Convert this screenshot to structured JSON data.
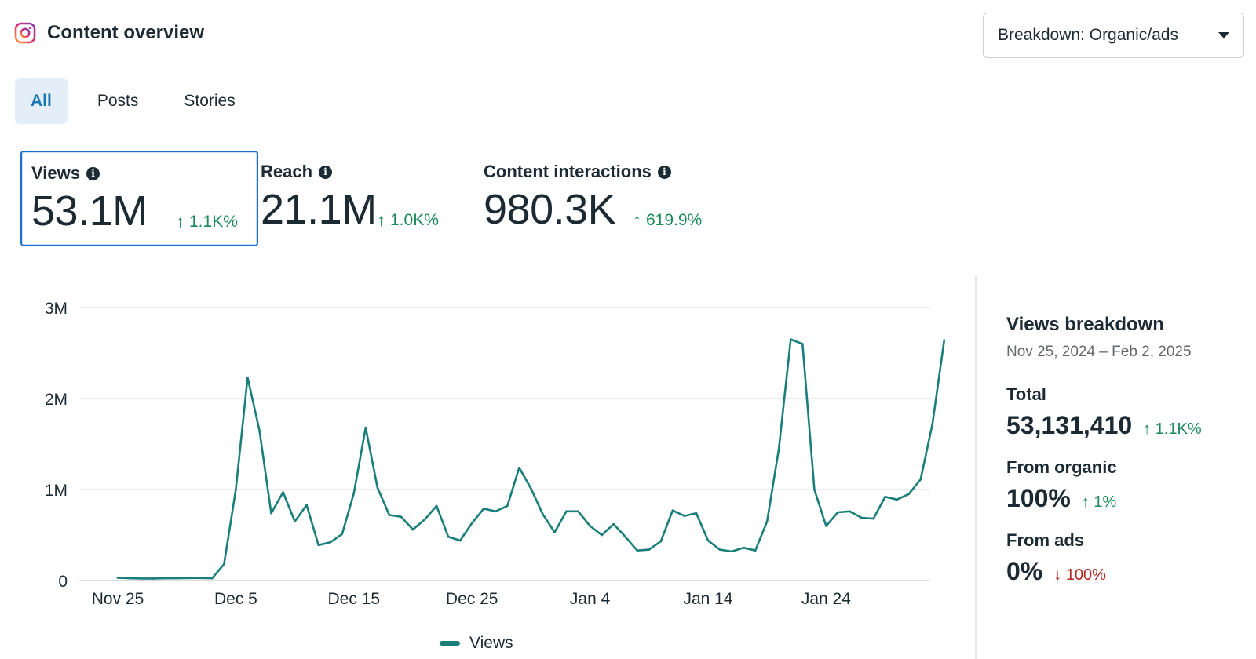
{
  "header": {
    "title": "Content overview",
    "breakdown_label": "Breakdown: Organic/ads"
  },
  "tabs": [
    {
      "label": "All",
      "active": true
    },
    {
      "label": "Posts",
      "active": false
    },
    {
      "label": "Stories",
      "active": false
    }
  ],
  "metrics": [
    {
      "label": "Views",
      "value": "53.1M",
      "change": "1.1K%",
      "selected": true
    },
    {
      "label": "Reach",
      "value": "21.1M",
      "change": "1.0K%",
      "selected": false
    },
    {
      "label": "Content interactions",
      "value": "980.3K",
      "change": "619.9%",
      "selected": false
    }
  ],
  "colors": {
    "line": "#1a7f7a",
    "up": "#1a8a5a",
    "down": "#b3261e",
    "accent": "#1a6fd1"
  },
  "chart_data": {
    "type": "line",
    "title": "",
    "xlabel": "",
    "ylabel": "",
    "ylim": [
      0,
      3000000
    ],
    "y_ticks": [
      {
        "value": 0,
        "label": "0"
      },
      {
        "value": 1000000,
        "label": "1M"
      },
      {
        "value": 2000000,
        "label": "2M"
      },
      {
        "value": 3000000,
        "label": "3M"
      }
    ],
    "x_ticks": [
      {
        "index": 0,
        "label": "Nov 25"
      },
      {
        "index": 10,
        "label": "Dec 5"
      },
      {
        "index": 20,
        "label": "Dec 15"
      },
      {
        "index": 30,
        "label": "Dec 25"
      },
      {
        "index": 40,
        "label": "Jan 4"
      },
      {
        "index": 50,
        "label": "Jan 14"
      },
      {
        "index": 60,
        "label": "Jan 24"
      }
    ],
    "series": [
      {
        "name": "Views",
        "values": [
          30000,
          25000,
          22000,
          22000,
          25000,
          25000,
          28000,
          28000,
          25000,
          180000,
          1000000,
          2230000,
          1650000,
          740000,
          970000,
          650000,
          830000,
          390000,
          420000,
          510000,
          960000,
          1680000,
          1020000,
          720000,
          700000,
          560000,
          670000,
          820000,
          480000,
          440000,
          630000,
          790000,
          760000,
          820000,
          1240000,
          1010000,
          730000,
          530000,
          760000,
          760000,
          600000,
          500000,
          620000,
          480000,
          330000,
          340000,
          430000,
          770000,
          710000,
          740000,
          440000,
          340000,
          320000,
          360000,
          330000,
          650000,
          1450000,
          2650000,
          2600000,
          1000000,
          600000,
          750000,
          760000,
          690000,
          680000,
          920000,
          890000,
          950000,
          1110000,
          1720000,
          2640000
        ]
      }
    ]
  },
  "legend": {
    "label": "Views"
  },
  "side": {
    "title": "Views breakdown",
    "date_range": "Nov 25, 2024 – Feb 2, 2025",
    "total_label": "Total",
    "total_value": "53,131,410",
    "total_change": "1.1K%",
    "organic_label": "From organic",
    "organic_value": "100%",
    "organic_change": "1%",
    "ads_label": "From ads",
    "ads_value": "0%",
    "ads_change": "100%"
  }
}
